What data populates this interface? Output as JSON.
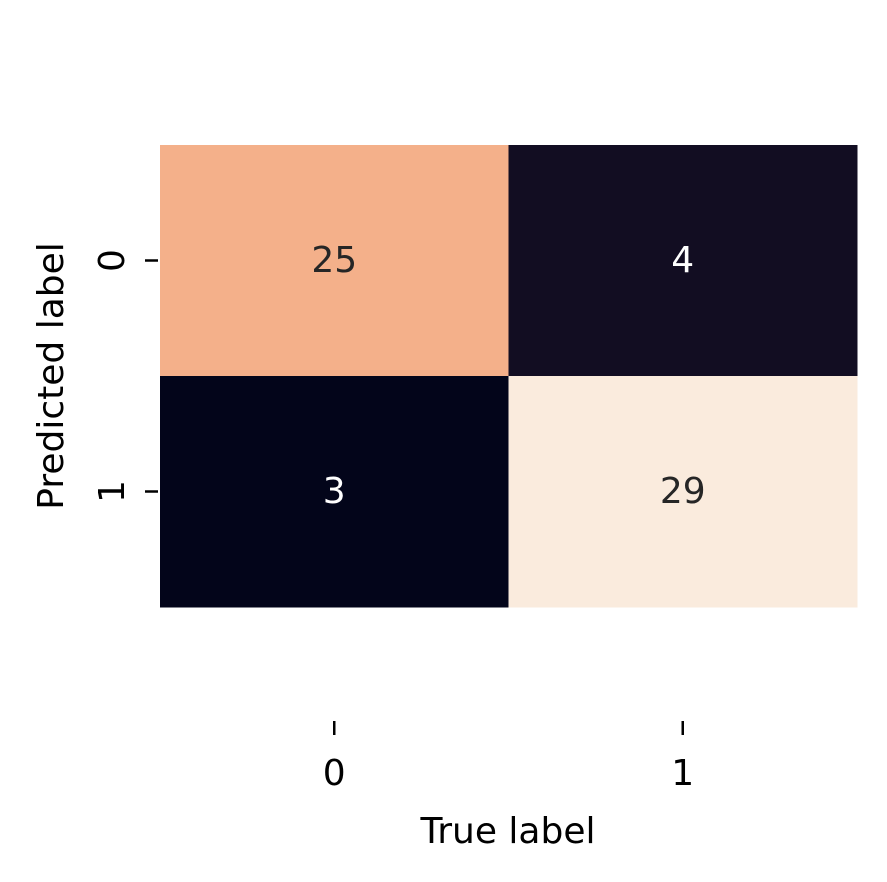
{
  "chart_data": {
    "type": "heatmap",
    "title": "",
    "xlabel": "True label",
    "ylabel": "Predicted label",
    "x_categories": [
      "0",
      "1"
    ],
    "y_categories": [
      "0",
      "1"
    ],
    "values": [
      [
        25,
        4
      ],
      [
        3,
        29
      ]
    ],
    "colorbar": false,
    "grid": false,
    "colors": {
      "cells": [
        [
          "#f4b08a",
          "#120d22"
        ],
        [
          "#03051a",
          "#faebdd"
        ]
      ],
      "dark_text": "#262626",
      "light_text": "#ffffff"
    }
  }
}
